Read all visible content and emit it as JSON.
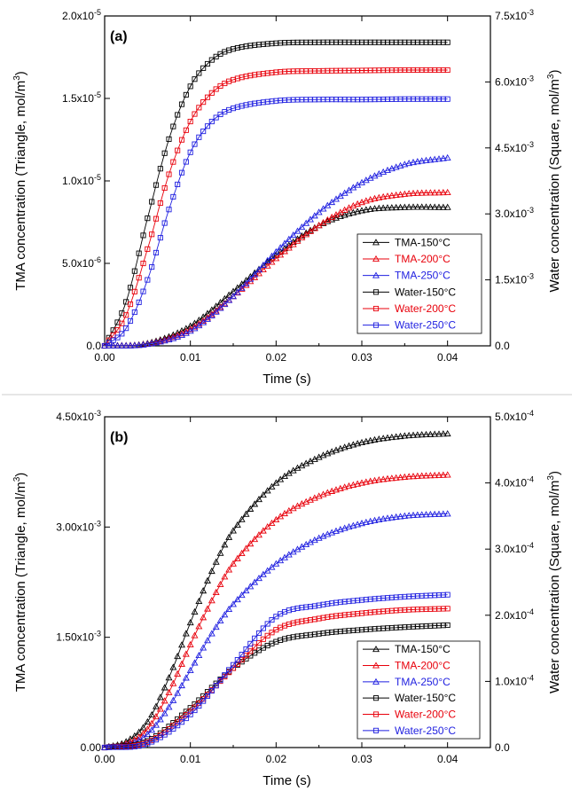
{
  "chart_data": [
    {
      "type": "line",
      "panel_label": "(a)",
      "xlabel": "Time (s)",
      "ylabel": "TMA concentration (Triangle, mol/m",
      "ylabel_sup": "3",
      "ylabel_tail": ")",
      "y2label": "Water concentration (Square, mol/m",
      "y2label_sup": "3",
      "y2label_tail": ")",
      "xlim": [
        0,
        0.045
      ],
      "ylim": [
        0,
        2e-05
      ],
      "y2lim": [
        0,
        0.0075
      ],
      "x_ticks": [
        "0.00",
        "0.01",
        "0.02",
        "0.03",
        "0.04"
      ],
      "y_ticks": [
        {
          "value": 0,
          "mant": "0.0",
          "exp": ""
        },
        {
          "value": 5e-06,
          "mant": "5.0x10",
          "exp": "-6"
        },
        {
          "value": 1e-05,
          "mant": "1.0x10",
          "exp": "-5"
        },
        {
          "value": 1.5e-05,
          "mant": "1.5x10",
          "exp": "-5"
        },
        {
          "value": 2e-05,
          "mant": "2.0x10",
          "exp": "-5"
        }
      ],
      "y2_ticks": [
        {
          "value": 0,
          "mant": "0.0",
          "exp": ""
        },
        {
          "value": 0.0015,
          "mant": "1.5x10",
          "exp": "-3"
        },
        {
          "value": 0.003,
          "mant": "3.0x10",
          "exp": "-3"
        },
        {
          "value": 0.0045,
          "mant": "4.5x10",
          "exp": "-3"
        },
        {
          "value": 0.006,
          "mant": "6.0x10",
          "exp": "-3"
        },
        {
          "value": 0.0075,
          "mant": "7.5x10",
          "exp": "-3"
        }
      ],
      "legend_position": "lower-right",
      "series": [
        {
          "name": "TMA-150°C",
          "axis": "left",
          "marker": "triangle",
          "color": "#000000",
          "x": [
            0,
            0.005,
            0.01,
            0.015,
            0.02,
            0.025,
            0.03,
            0.035,
            0.04
          ],
          "y": [
            0,
            1.5e-07,
            1.2e-06,
            3.3e-06,
            5.5e-06,
            7.3e-06,
            8.2e-06,
            8.4e-06,
            8.4e-06
          ]
        },
        {
          "name": "TMA-200°C",
          "axis": "left",
          "marker": "triangle",
          "color": "#e8000b",
          "x": [
            0,
            0.005,
            0.01,
            0.015,
            0.02,
            0.025,
            0.03,
            0.035,
            0.04
          ],
          "y": [
            0,
            1.2e-07,
            1e-06,
            3e-06,
            5.3e-06,
            7.3e-06,
            8.7e-06,
            9.2e-06,
            9.3e-06
          ]
        },
        {
          "name": "TMA-250°C",
          "axis": "left",
          "marker": "triangle",
          "color": "#1f1fe0",
          "x": [
            0,
            0.005,
            0.01,
            0.015,
            0.02,
            0.025,
            0.03,
            0.035,
            0.04
          ],
          "y": [
            0,
            1e-07,
            9e-07,
            3e-06,
            5.7e-06,
            8.1e-06,
            9.9e-06,
            1.1e-05,
            1.14e-05
          ]
        },
        {
          "name": "Water-150°C",
          "axis": "right",
          "marker": "square",
          "color": "#000000",
          "x": [
            0,
            0.0025,
            0.005,
            0.0075,
            0.01,
            0.0125,
            0.015,
            0.02,
            0.025,
            0.03,
            0.035,
            0.04
          ],
          "y": [
            0,
            0.001,
            0.0029,
            0.0047,
            0.0059,
            0.0065,
            0.00675,
            0.00688,
            0.0069,
            0.0069,
            0.0069,
            0.0069
          ]
        },
        {
          "name": "Water-200°C",
          "axis": "right",
          "marker": "square",
          "color": "#e8000b",
          "x": [
            0,
            0.0025,
            0.005,
            0.0075,
            0.01,
            0.0125,
            0.015,
            0.02,
            0.025,
            0.03,
            0.035,
            0.04
          ],
          "y": [
            0,
            0.0007,
            0.0022,
            0.0039,
            0.0051,
            0.00575,
            0.00605,
            0.00622,
            0.00625,
            0.00626,
            0.00627,
            0.00627
          ]
        },
        {
          "name": "Water-250°C",
          "axis": "right",
          "marker": "square",
          "color": "#1f1fe0",
          "x": [
            0,
            0.0025,
            0.005,
            0.0075,
            0.01,
            0.0125,
            0.015,
            0.02,
            0.025,
            0.03,
            0.035,
            0.04
          ],
          "y": [
            0,
            0.0004,
            0.0015,
            0.0031,
            0.0044,
            0.0051,
            0.0054,
            0.00557,
            0.0056,
            0.0056,
            0.00561,
            0.00561
          ]
        }
      ]
    },
    {
      "type": "line",
      "panel_label": "(b)",
      "xlabel": "Time (s)",
      "ylabel": "TMA concentration (Triangle, mol/m",
      "ylabel_sup": "3",
      "ylabel_tail": ")",
      "y2label": "Water concentration (Square, mol/m",
      "y2label_sup": "3",
      "y2label_tail": ")",
      "xlim": [
        0,
        0.045
      ],
      "ylim": [
        0,
        0.0045
      ],
      "y2lim": [
        0,
        0.0005
      ],
      "x_ticks": [
        "0.00",
        "0.01",
        "0.02",
        "0.03",
        "0.04"
      ],
      "y_ticks": [
        {
          "value": 0,
          "mant": "0.00",
          "exp": ""
        },
        {
          "value": 0.0015,
          "mant": "1.50x10",
          "exp": "-3"
        },
        {
          "value": 0.003,
          "mant": "3.00x10",
          "exp": "-3"
        },
        {
          "value": 0.0045,
          "mant": "4.50x10",
          "exp": "-3"
        }
      ],
      "y2_ticks": [
        {
          "value": 0,
          "mant": "0.0",
          "exp": ""
        },
        {
          "value": 0.0001,
          "mant": "1.0x10",
          "exp": "-4"
        },
        {
          "value": 0.0002,
          "mant": "2.0x10",
          "exp": "-4"
        },
        {
          "value": 0.0003,
          "mant": "3.0x10",
          "exp": "-4"
        },
        {
          "value": 0.0004,
          "mant": "4.0x10",
          "exp": "-4"
        },
        {
          "value": 0.0005,
          "mant": "5.0x10",
          "exp": "-4"
        }
      ],
      "legend_position": "lower-right",
      "series": [
        {
          "name": "TMA-150°C",
          "axis": "left",
          "marker": "triangle",
          "color": "#000000",
          "x": [
            0,
            0.0025,
            0.005,
            0.0075,
            0.01,
            0.0125,
            0.015,
            0.02,
            0.025,
            0.03,
            0.035,
            0.04
          ],
          "y": [
            0,
            8e-05,
            0.00035,
            0.00095,
            0.0017,
            0.0024,
            0.00295,
            0.0036,
            0.00395,
            0.00415,
            0.00424,
            0.00427
          ]
        },
        {
          "name": "TMA-200°C",
          "axis": "left",
          "marker": "triangle",
          "color": "#e8000b",
          "x": [
            0,
            0.0025,
            0.005,
            0.0075,
            0.01,
            0.0125,
            0.015,
            0.02,
            0.025,
            0.03,
            0.035,
            0.04
          ],
          "y": [
            0,
            5e-05,
            0.00025,
            0.00075,
            0.0014,
            0.002,
            0.0025,
            0.0031,
            0.00342,
            0.0036,
            0.00368,
            0.00371
          ]
        },
        {
          "name": "TMA-250°C",
          "axis": "left",
          "marker": "triangle",
          "color": "#1f1fe0",
          "x": [
            0,
            0.0025,
            0.005,
            0.0075,
            0.01,
            0.0125,
            0.015,
            0.02,
            0.025,
            0.03,
            0.035,
            0.04
          ],
          "y": [
            0,
            3e-05,
            0.00018,
            0.00055,
            0.00105,
            0.00155,
            0.00195,
            0.0025,
            0.00285,
            0.00305,
            0.00315,
            0.00318
          ]
        },
        {
          "name": "Water-150°C",
          "axis": "right",
          "marker": "square",
          "color": "#000000",
          "x": [
            0,
            0.005,
            0.01,
            0.015,
            0.02,
            0.025,
            0.03,
            0.035,
            0.04
          ],
          "y": [
            0,
            1e-05,
            6e-05,
            0.00012,
            0.00016,
            0.000172,
            0.000178,
            0.000182,
            0.000185
          ]
        },
        {
          "name": "Water-200°C",
          "axis": "right",
          "marker": "square",
          "color": "#e8000b",
          "x": [
            0,
            0.005,
            0.01,
            0.015,
            0.02,
            0.025,
            0.03,
            0.035,
            0.04
          ],
          "y": [
            0,
            8e-06,
            5.5e-05,
            0.00012,
            0.000178,
            0.000195,
            0.000203,
            0.000208,
            0.00021
          ]
        },
        {
          "name": "Water-250°C",
          "axis": "right",
          "marker": "square",
          "color": "#1f1fe0",
          "x": [
            0,
            0.005,
            0.01,
            0.015,
            0.02,
            0.025,
            0.03,
            0.035,
            0.04
          ],
          "y": [
            0,
            6e-06,
            5e-05,
            0.000125,
            0.000198,
            0.000215,
            0.000223,
            0.000228,
            0.000231
          ]
        }
      ]
    }
  ]
}
